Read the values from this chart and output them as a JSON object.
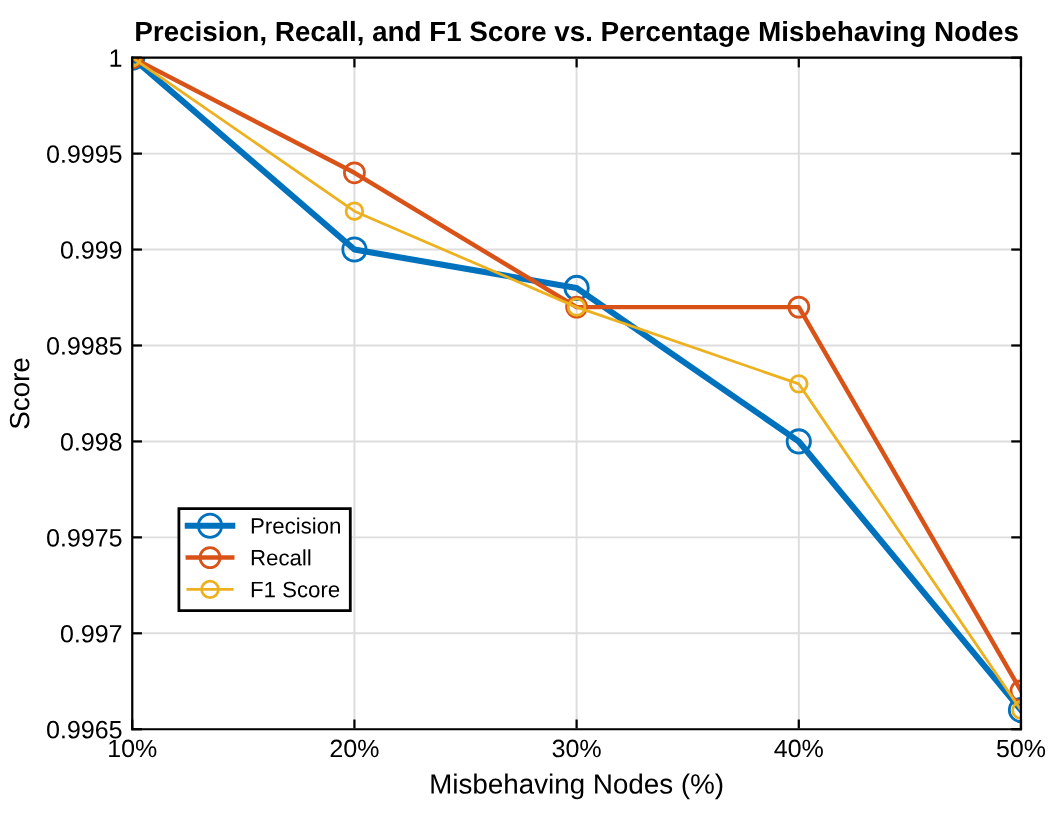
{
  "chart_data": {
    "type": "line",
    "title": "Precision, Recall, and F1 Score vs. Percentage Misbehaving Nodes",
    "xlabel": "Misbehaving Nodes (%)",
    "ylabel": "Score",
    "x": [
      10,
      20,
      30,
      40,
      50
    ],
    "series": [
      {
        "name": "Precision",
        "color": "#0072bd",
        "values": [
          1,
          0.999,
          0.9988,
          0.998,
          0.9966
        ]
      },
      {
        "name": "Recall",
        "color": "#d95319",
        "values": [
          1,
          0.9994,
          0.9987,
          0.9987,
          0.9967
        ]
      },
      {
        "name": "F1 Score",
        "color": "#edb120",
        "values": [
          1,
          0.9992,
          0.9987,
          0.9983,
          0.9966
        ]
      }
    ],
    "xlim": [
      10,
      50
    ],
    "xticks": [
      {
        "value": 10,
        "label": "10%"
      },
      {
        "value": 20,
        "label": "20%"
      },
      {
        "value": 30,
        "label": "30%"
      },
      {
        "value": 40,
        "label": "40%"
      },
      {
        "value": 50,
        "label": "50%"
      }
    ],
    "ylim": [
      0.9965,
      1
    ],
    "yticks": [
      0.9965,
      0.997,
      0.9975,
      0.998,
      0.9985,
      0.999,
      0.9995,
      1
    ],
    "grid": true,
    "legend": "bottom left",
    "marker": "circle",
    "line_style": "solid"
  }
}
